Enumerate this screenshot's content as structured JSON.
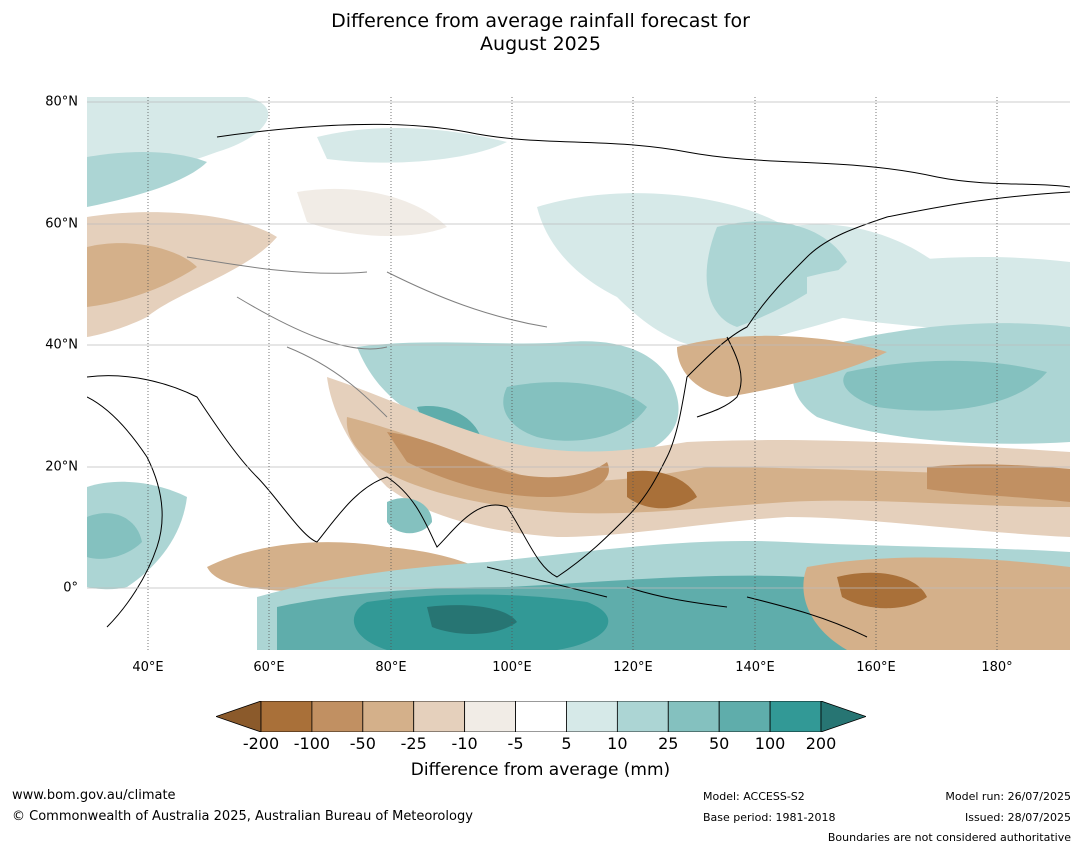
{
  "title": {
    "line1": "Difference from average rainfall forecast for",
    "line2": "August 2025"
  },
  "map": {
    "lat_labels": [
      "80°N",
      "60°N",
      "40°N",
      "20°N",
      "0°"
    ],
    "lon_labels": [
      "40°E",
      "60°E",
      "80°E",
      "100°E",
      "120°E",
      "140°E",
      "160°E",
      "180°"
    ],
    "extent": {
      "lon_min": 30,
      "lon_max": 192,
      "lat_min": -10,
      "lat_max": 81
    }
  },
  "colorbar": {
    "ticks": [
      "-200",
      "-100",
      "-50",
      "-25",
      "-10",
      "-5",
      "5",
      "10",
      "25",
      "50",
      "100",
      "200"
    ],
    "colors": [
      "#8b5a2b",
      "#a97039",
      "#c19062",
      "#d4b08a",
      "#e5d0bc",
      "#f1ece6",
      "#ffffff",
      "#d6e9e8",
      "#acd5d4",
      "#84c1bf",
      "#5fadab",
      "#329996",
      "#277573"
    ],
    "label": "Difference from average (mm)"
  },
  "footer": {
    "website": "www.bom.gov.au/climate",
    "copyright": "© Commonwealth of Australia 2025, Australian Bureau of Meteorology",
    "model": "Model: ACCESS-S2",
    "base_period": "Base period: 1981-2018",
    "model_run": "Model run: 26/07/2025",
    "issued": "Issued: 28/07/2025",
    "disclaimer": "Boundaries are not considered authoritative"
  }
}
